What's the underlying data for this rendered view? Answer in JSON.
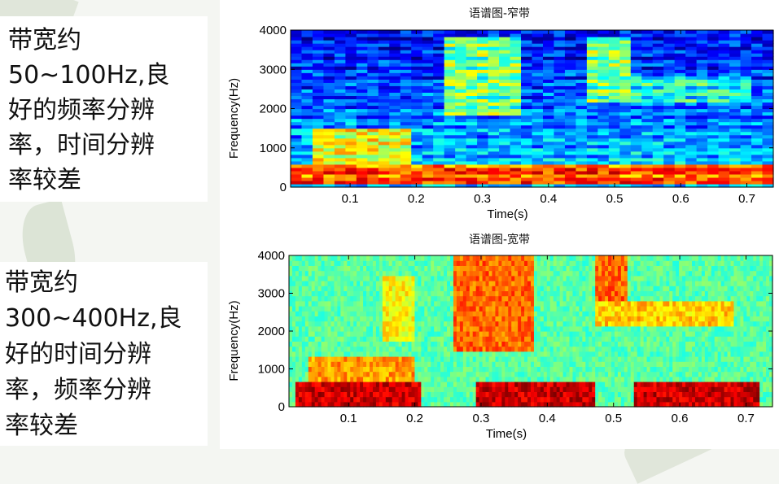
{
  "slide": {
    "notes": [
      {
        "lines": [
          "带宽约",
          "50~100Hz,良",
          "好的频率分辨",
          "率，时间分辨",
          "率较差"
        ]
      },
      {
        "lines": [
          "带宽约",
          "300~400Hz,良",
          "好的时间分辨",
          "率，频率分辨",
          "率较差"
        ]
      }
    ]
  },
  "chart_data": [
    {
      "type": "heatmap",
      "title": "语谱图-窄带",
      "xlabel": "Time(s)",
      "ylabel": "Frequency(Hz)",
      "xlim": [
        0.01,
        0.74
      ],
      "ylim": [
        0,
        4000
      ],
      "xticks": [
        0.1,
        0.2,
        0.3,
        0.4,
        0.5,
        0.6,
        0.7
      ],
      "xtick_labels": [
        "0.1",
        "0.2",
        "0.3",
        "0.4",
        "0.5",
        "0.6",
        "0.7"
      ],
      "yticks": [
        0,
        1000,
        2000,
        3000,
        4000
      ],
      "ytick_labels": [
        "0",
        "1000",
        "2000",
        "3000",
        "4000"
      ],
      "colormap": "jet",
      "bandwidth_hz": "50~100",
      "energy_regions": [
        {
          "t": [
            0.01,
            0.74
          ],
          "f": [
            100,
            600
          ],
          "level": 0.95
        },
        {
          "t": [
            0.04,
            0.2
          ],
          "f": [
            600,
            1500
          ],
          "level": 0.75
        },
        {
          "t": [
            0.24,
            0.36
          ],
          "f": [
            1800,
            3800
          ],
          "level": 0.65
        },
        {
          "t": [
            0.46,
            0.52
          ],
          "f": [
            2200,
            3800
          ],
          "level": 0.65
        },
        {
          "t": [
            0.52,
            0.7
          ],
          "f": [
            2200,
            2800
          ],
          "level": 0.55
        }
      ]
    },
    {
      "type": "heatmap",
      "title": "语谱图-宽带",
      "xlabel": "Time(s)",
      "ylabel": "Frequency(Hz)",
      "xlim": [
        0.01,
        0.74
      ],
      "ylim": [
        0,
        4000
      ],
      "xticks": [
        0.1,
        0.2,
        0.3,
        0.4,
        0.5,
        0.6,
        0.7
      ],
      "xtick_labels": [
        "0.1",
        "0.2",
        "0.3",
        "0.4",
        "0.5",
        "0.6",
        "0.7"
      ],
      "yticks": [
        0,
        1000,
        2000,
        3000,
        4000
      ],
      "ytick_labels": [
        "0",
        "1000",
        "2000",
        "3000",
        "4000"
      ],
      "colormap": "jet",
      "bandwidth_hz": "300~400",
      "energy_regions": [
        {
          "t": [
            0.02,
            0.21
          ],
          "f": [
            0,
            700
          ],
          "level": 1.0
        },
        {
          "t": [
            0.29,
            0.47
          ],
          "f": [
            0,
            700
          ],
          "level": 1.0
        },
        {
          "t": [
            0.53,
            0.72
          ],
          "f": [
            0,
            700
          ],
          "level": 1.0
        },
        {
          "t": [
            0.04,
            0.2
          ],
          "f": [
            700,
            1300
          ],
          "level": 0.8
        },
        {
          "t": [
            0.15,
            0.2
          ],
          "f": [
            1800,
            3500
          ],
          "level": 0.7
        },
        {
          "t": [
            0.26,
            0.38
          ],
          "f": [
            1500,
            4000
          ],
          "level": 0.85
        },
        {
          "t": [
            0.47,
            0.52
          ],
          "f": [
            2800,
            4000
          ],
          "level": 0.85
        },
        {
          "t": [
            0.47,
            0.68
          ],
          "f": [
            2100,
            2800
          ],
          "level": 0.75
        }
      ]
    }
  ]
}
